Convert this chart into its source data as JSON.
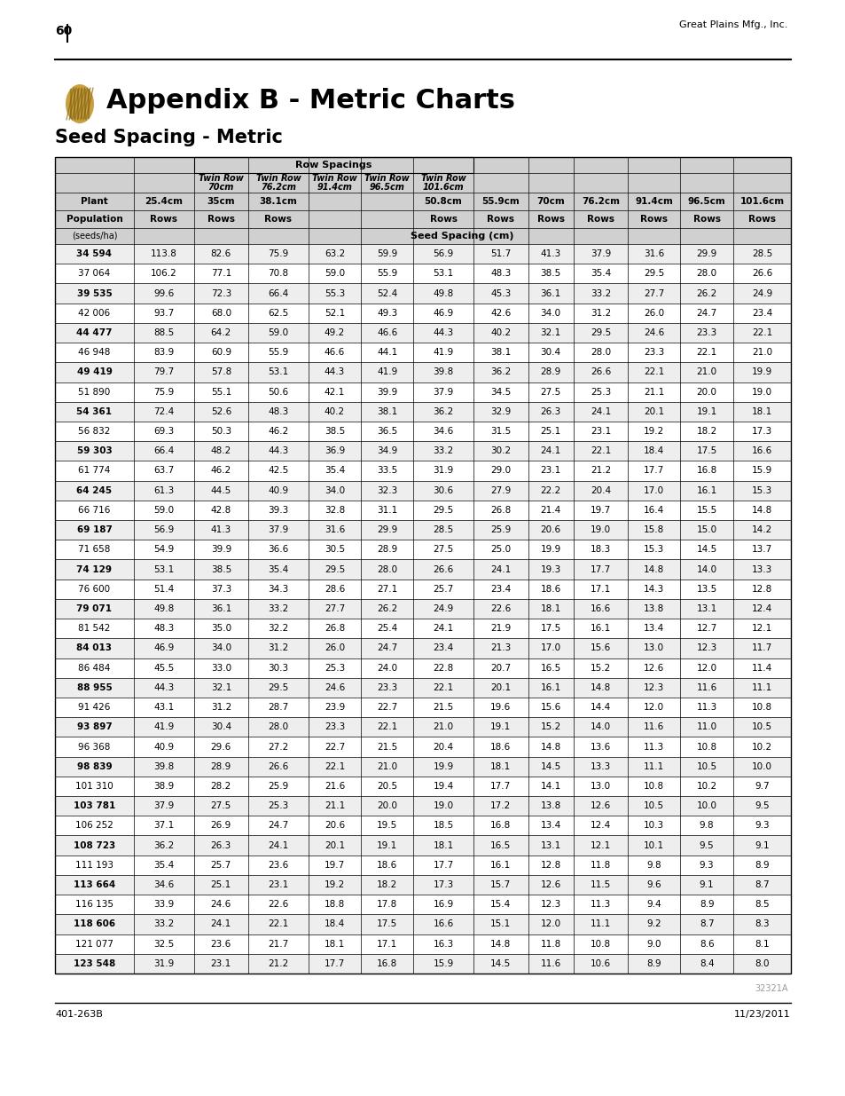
{
  "page_number": "60",
  "top_right_text": "Great Plains Mfg., Inc.",
  "bottom_left_text": "401-263B",
  "bottom_right_text": "11/23/2011",
  "watermark": "32321A",
  "appendix_title": "Appendix B - Metric Charts",
  "section_title": "Seed Spacing - Metric",
  "table_title": "Row Spacings",
  "sub_header_note": "Seed Spacing (cm)",
  "data": [
    [
      "34 594",
      113.8,
      82.6,
      75.9,
      63.2,
      59.9,
      56.9,
      51.7,
      41.3,
      37.9,
      31.6,
      29.9,
      28.5
    ],
    [
      "37 064",
      106.2,
      77.1,
      70.8,
      59.0,
      55.9,
      53.1,
      48.3,
      38.5,
      35.4,
      29.5,
      28.0,
      26.6
    ],
    [
      "39 535",
      99.6,
      72.3,
      66.4,
      55.3,
      52.4,
      49.8,
      45.3,
      36.1,
      33.2,
      27.7,
      26.2,
      24.9
    ],
    [
      "42 006",
      93.7,
      68.0,
      62.5,
      52.1,
      49.3,
      46.9,
      42.6,
      34.0,
      31.2,
      26.0,
      24.7,
      23.4
    ],
    [
      "44 477",
      88.5,
      64.2,
      59.0,
      49.2,
      46.6,
      44.3,
      40.2,
      32.1,
      29.5,
      24.6,
      23.3,
      22.1
    ],
    [
      "46 948",
      83.9,
      60.9,
      55.9,
      46.6,
      44.1,
      41.9,
      38.1,
      30.4,
      28.0,
      23.3,
      22.1,
      21.0
    ],
    [
      "49 419",
      79.7,
      57.8,
      53.1,
      44.3,
      41.9,
      39.8,
      36.2,
      28.9,
      26.6,
      22.1,
      21.0,
      19.9
    ],
    [
      "51 890",
      75.9,
      55.1,
      50.6,
      42.1,
      39.9,
      37.9,
      34.5,
      27.5,
      25.3,
      21.1,
      20.0,
      19.0
    ],
    [
      "54 361",
      72.4,
      52.6,
      48.3,
      40.2,
      38.1,
      36.2,
      32.9,
      26.3,
      24.1,
      20.1,
      19.1,
      18.1
    ],
    [
      "56 832",
      69.3,
      50.3,
      46.2,
      38.5,
      36.5,
      34.6,
      31.5,
      25.1,
      23.1,
      19.2,
      18.2,
      17.3
    ],
    [
      "59 303",
      66.4,
      48.2,
      44.3,
      36.9,
      34.9,
      33.2,
      30.2,
      24.1,
      22.1,
      18.4,
      17.5,
      16.6
    ],
    [
      "61 774",
      63.7,
      46.2,
      42.5,
      35.4,
      33.5,
      31.9,
      29.0,
      23.1,
      21.2,
      17.7,
      16.8,
      15.9
    ],
    [
      "64 245",
      61.3,
      44.5,
      40.9,
      34.0,
      32.3,
      30.6,
      27.9,
      22.2,
      20.4,
      17.0,
      16.1,
      15.3
    ],
    [
      "66 716",
      59.0,
      42.8,
      39.3,
      32.8,
      31.1,
      29.5,
      26.8,
      21.4,
      19.7,
      16.4,
      15.5,
      14.8
    ],
    [
      "69 187",
      56.9,
      41.3,
      37.9,
      31.6,
      29.9,
      28.5,
      25.9,
      20.6,
      19.0,
      15.8,
      15.0,
      14.2
    ],
    [
      "71 658",
      54.9,
      39.9,
      36.6,
      30.5,
      28.9,
      27.5,
      25.0,
      19.9,
      18.3,
      15.3,
      14.5,
      13.7
    ],
    [
      "74 129",
      53.1,
      38.5,
      35.4,
      29.5,
      28.0,
      26.6,
      24.1,
      19.3,
      17.7,
      14.8,
      14.0,
      13.3
    ],
    [
      "76 600",
      51.4,
      37.3,
      34.3,
      28.6,
      27.1,
      25.7,
      23.4,
      18.6,
      17.1,
      14.3,
      13.5,
      12.8
    ],
    [
      "79 071",
      49.8,
      36.1,
      33.2,
      27.7,
      26.2,
      24.9,
      22.6,
      18.1,
      16.6,
      13.8,
      13.1,
      12.4
    ],
    [
      "81 542",
      48.3,
      35.0,
      32.2,
      26.8,
      25.4,
      24.1,
      21.9,
      17.5,
      16.1,
      13.4,
      12.7,
      12.1
    ],
    [
      "84 013",
      46.9,
      34.0,
      31.2,
      26.0,
      24.7,
      23.4,
      21.3,
      17.0,
      15.6,
      13.0,
      12.3,
      11.7
    ],
    [
      "86 484",
      45.5,
      33.0,
      30.3,
      25.3,
      24.0,
      22.8,
      20.7,
      16.5,
      15.2,
      12.6,
      12.0,
      11.4
    ],
    [
      "88 955",
      44.3,
      32.1,
      29.5,
      24.6,
      23.3,
      22.1,
      20.1,
      16.1,
      14.8,
      12.3,
      11.6,
      11.1
    ],
    [
      "91 426",
      43.1,
      31.2,
      28.7,
      23.9,
      22.7,
      21.5,
      19.6,
      15.6,
      14.4,
      12.0,
      11.3,
      10.8
    ],
    [
      "93 897",
      41.9,
      30.4,
      28.0,
      23.3,
      22.1,
      21.0,
      19.1,
      15.2,
      14.0,
      11.6,
      11.0,
      10.5
    ],
    [
      "96 368",
      40.9,
      29.6,
      27.2,
      22.7,
      21.5,
      20.4,
      18.6,
      14.8,
      13.6,
      11.3,
      10.8,
      10.2
    ],
    [
      "98 839",
      39.8,
      28.9,
      26.6,
      22.1,
      21.0,
      19.9,
      18.1,
      14.5,
      13.3,
      11.1,
      10.5,
      10.0
    ],
    [
      "101 310",
      38.9,
      28.2,
      25.9,
      21.6,
      20.5,
      19.4,
      17.7,
      14.1,
      13.0,
      10.8,
      10.2,
      9.7
    ],
    [
      "103 781",
      37.9,
      27.5,
      25.3,
      21.1,
      20.0,
      19.0,
      17.2,
      13.8,
      12.6,
      10.5,
      10.0,
      9.5
    ],
    [
      "106 252",
      37.1,
      26.9,
      24.7,
      20.6,
      19.5,
      18.5,
      16.8,
      13.4,
      12.4,
      10.3,
      9.8,
      9.3
    ],
    [
      "108 723",
      36.2,
      26.3,
      24.1,
      20.1,
      19.1,
      18.1,
      16.5,
      13.1,
      12.1,
      10.1,
      9.5,
      9.1
    ],
    [
      "111 193",
      35.4,
      25.7,
      23.6,
      19.7,
      18.6,
      17.7,
      16.1,
      12.8,
      11.8,
      9.8,
      9.3,
      8.9
    ],
    [
      "113 664",
      34.6,
      25.1,
      23.1,
      19.2,
      18.2,
      17.3,
      15.7,
      12.6,
      11.5,
      9.6,
      9.1,
      8.7
    ],
    [
      "116 135",
      33.9,
      24.6,
      22.6,
      18.8,
      17.8,
      16.9,
      15.4,
      12.3,
      11.3,
      9.4,
      8.9,
      8.5
    ],
    [
      "118 606",
      33.2,
      24.1,
      22.1,
      18.4,
      17.5,
      16.6,
      15.1,
      12.0,
      11.1,
      9.2,
      8.7,
      8.3
    ],
    [
      "121 077",
      32.5,
      23.6,
      21.7,
      18.1,
      17.1,
      16.3,
      14.8,
      11.8,
      10.8,
      9.0,
      8.6,
      8.1
    ],
    [
      "123 548",
      31.9,
      23.1,
      21.2,
      17.7,
      16.8,
      15.9,
      14.5,
      11.6,
      10.6,
      8.9,
      8.4,
      8.0
    ]
  ],
  "bold_rows": [
    0,
    2,
    4,
    6,
    8,
    10,
    12,
    14,
    16,
    18,
    20,
    22,
    24,
    26,
    28,
    30,
    32,
    34,
    36
  ],
  "header_bg": "#d0d0d0",
  "logo_color": "#C8A040"
}
